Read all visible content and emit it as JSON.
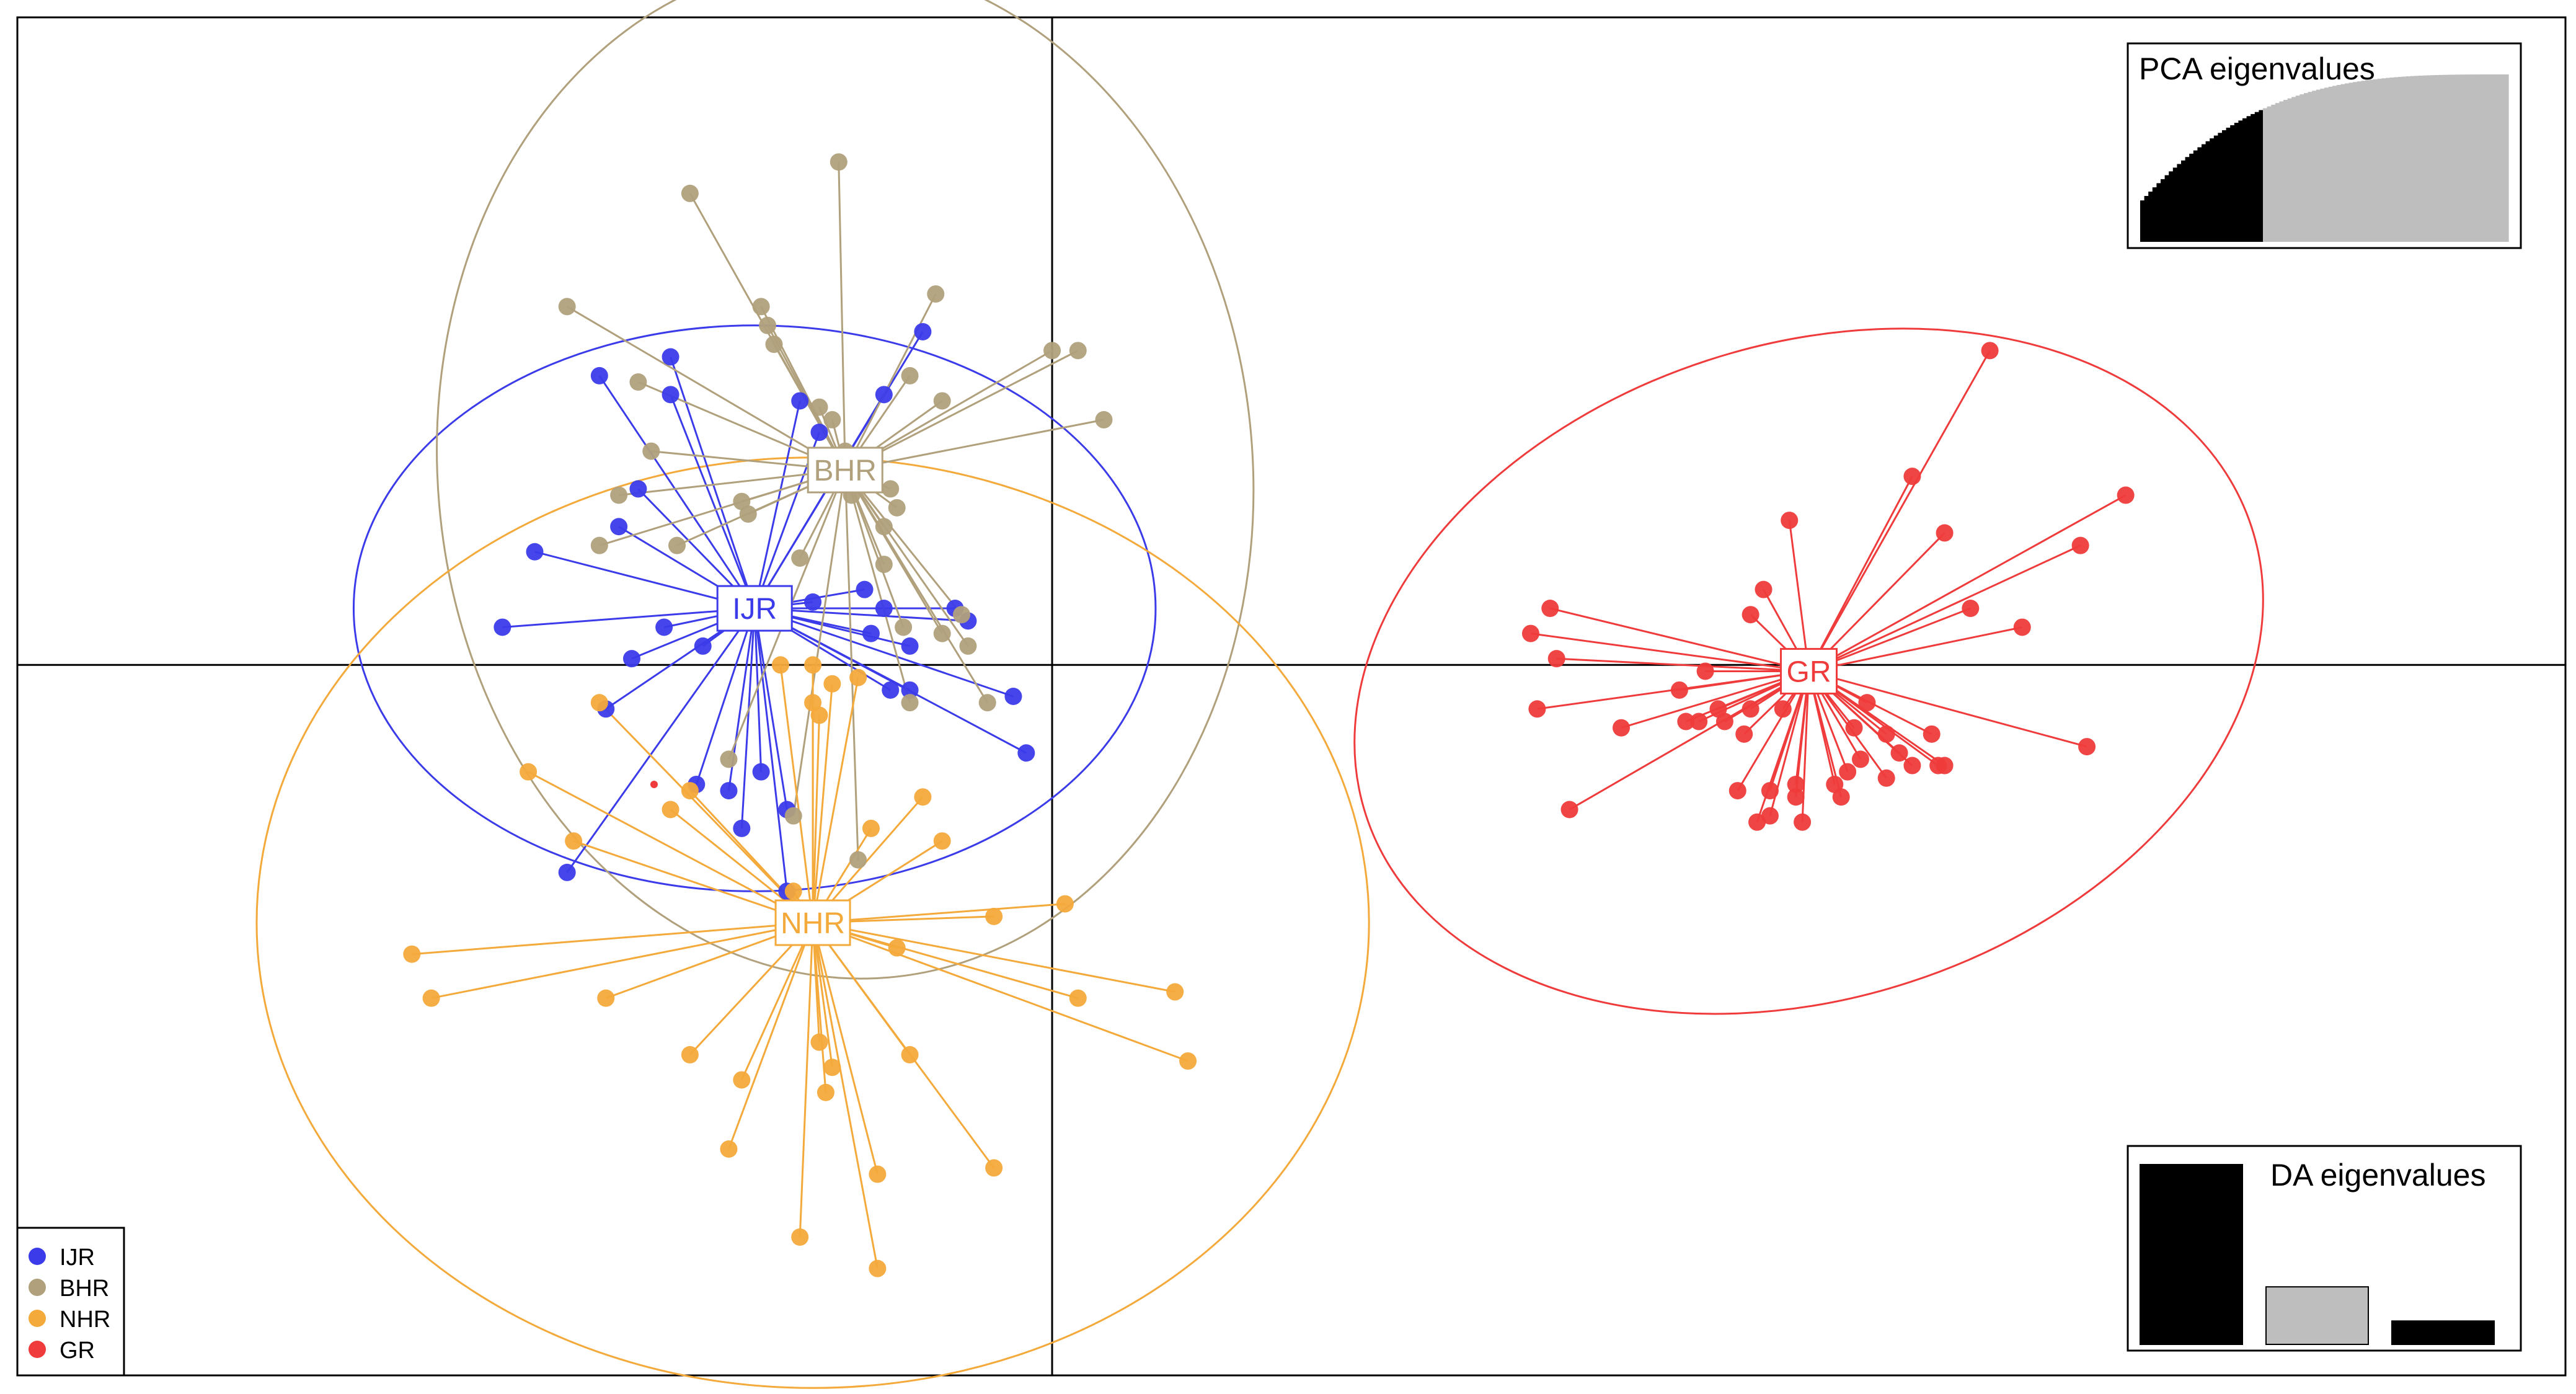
{
  "chart_data": {
    "type": "scatter",
    "title": "",
    "xlabel": "",
    "ylabel": "",
    "xlim": [
      -16.0,
      23.4
    ],
    "ylim": [
      -11.3,
      10.3
    ],
    "grid": false,
    "axes": "cross-at-origin",
    "legend_position": "bottom-left",
    "series": [
      {
        "name": "IJR",
        "color": "#3b3bea",
        "centroid": [
          -4.6,
          0.9
        ],
        "ellipse": {
          "rx": 6.2,
          "ry": 4.5,
          "angle": 0
        },
        "points": [
          [
            -7.0,
            4.6
          ],
          [
            -5.9,
            4.9
          ],
          [
            -5.9,
            4.3
          ],
          [
            -3.9,
            4.2
          ],
          [
            -2.6,
            4.3
          ],
          [
            -2.0,
            5.3
          ],
          [
            -3.6,
            3.7
          ],
          [
            -6.4,
            2.8
          ],
          [
            -6.7,
            2.2
          ],
          [
            -8.0,
            1.8
          ],
          [
            -8.5,
            0.6
          ],
          [
            -6.0,
            0.6
          ],
          [
            -6.5,
            0.1
          ],
          [
            -5.4,
            0.3
          ],
          [
            -3.7,
            1.0
          ],
          [
            -2.9,
            1.2
          ],
          [
            -2.6,
            0.9
          ],
          [
            -1.5,
            0.9
          ],
          [
            -2.8,
            0.5
          ],
          [
            -2.2,
            0.3
          ],
          [
            -1.3,
            0.7
          ],
          [
            -0.6,
            -0.5
          ],
          [
            -6.9,
            -0.7
          ],
          [
            -5.5,
            -1.9
          ],
          [
            -4.5,
            -1.7
          ],
          [
            -5.0,
            -2.0
          ],
          [
            -4.1,
            -2.3
          ],
          [
            -4.8,
            -2.6
          ],
          [
            -2.2,
            -0.4
          ],
          [
            -0.4,
            -1.4
          ],
          [
            -7.5,
            -3.3
          ],
          [
            -4.1,
            -3.6
          ],
          [
            -2.5,
            -0.4
          ]
        ]
      },
      {
        "name": "BHR",
        "color": "#b0a07c",
        "centroid": [
          -3.2,
          3.1
        ],
        "ellipse": {
          "rx": 6.3,
          "ry": 8.1,
          "angle": -5
        },
        "points": [
          [
            -3.3,
            8.0
          ],
          [
            -5.6,
            7.5
          ],
          [
            -7.5,
            5.7
          ],
          [
            -4.5,
            5.7
          ],
          [
            -4.4,
            5.4
          ],
          [
            -4.3,
            5.1
          ],
          [
            -1.8,
            5.9
          ],
          [
            -2.2,
            4.6
          ],
          [
            -1.7,
            4.2
          ],
          [
            -3.6,
            4.1
          ],
          [
            -3.4,
            3.9
          ],
          [
            -6.4,
            4.5
          ],
          [
            0.0,
            5.0
          ],
          [
            0.4,
            5.0
          ],
          [
            0.8,
            3.9
          ],
          [
            -6.2,
            3.4
          ],
          [
            -3.2,
            3.4
          ],
          [
            -3.1,
            2.7
          ],
          [
            -4.8,
            2.6
          ],
          [
            -4.7,
            2.4
          ],
          [
            -2.5,
            2.8
          ],
          [
            -2.4,
            2.5
          ],
          [
            -2.6,
            2.2
          ],
          [
            -6.7,
            2.7
          ],
          [
            -5.8,
            1.9
          ],
          [
            -2.6,
            1.6
          ],
          [
            -3.9,
            1.7
          ],
          [
            -7.0,
            1.9
          ],
          [
            -2.3,
            0.6
          ],
          [
            -1.4,
            0.8
          ],
          [
            -1.7,
            0.5
          ],
          [
            -1.3,
            0.3
          ],
          [
            -2.2,
            -0.6
          ],
          [
            -1.0,
            -0.6
          ],
          [
            -5.0,
            -1.5
          ],
          [
            -4.0,
            -2.4
          ],
          [
            -3.0,
            -3.1
          ]
        ]
      },
      {
        "name": "NHR",
        "color": "#f4a93b",
        "centroid": [
          -3.7,
          -4.1
        ],
        "ellipse": {
          "rx": 8.6,
          "ry": 7.4,
          "angle": 0
        },
        "points": [
          [
            -4.2,
            0.0
          ],
          [
            -3.7,
            0.0
          ],
          [
            -3.4,
            -0.3
          ],
          [
            -3.0,
            -0.2
          ],
          [
            -3.7,
            -0.6
          ],
          [
            -7.0,
            -0.6
          ],
          [
            -3.6,
            -0.8
          ],
          [
            -8.1,
            -1.7
          ],
          [
            -5.6,
            -2.0
          ],
          [
            -7.4,
            -2.8
          ],
          [
            -5.9,
            -2.3
          ],
          [
            -2.0,
            -2.1
          ],
          [
            -1.7,
            -2.8
          ],
          [
            -4.0,
            -3.6
          ],
          [
            -2.8,
            -2.6
          ],
          [
            -9.9,
            -4.6
          ],
          [
            -9.6,
            -5.3
          ],
          [
            -6.9,
            -5.3
          ],
          [
            -3.9,
            -3.9
          ],
          [
            -0.9,
            -4.0
          ],
          [
            0.2,
            -3.8
          ],
          [
            -2.4,
            -4.5
          ],
          [
            -5.6,
            -6.2
          ],
          [
            -4.8,
            -6.6
          ],
          [
            -3.4,
            -6.4
          ],
          [
            -2.2,
            -6.2
          ],
          [
            -3.6,
            -6.0
          ],
          [
            -3.5,
            -6.8
          ],
          [
            -5.0,
            -7.7
          ],
          [
            -3.9,
            -9.1
          ],
          [
            -2.7,
            -8.1
          ],
          [
            0.4,
            -5.3
          ],
          [
            1.9,
            -5.2
          ],
          [
            2.1,
            -6.3
          ],
          [
            -0.9,
            -8.0
          ],
          [
            -2.7,
            -9.6
          ]
        ]
      },
      {
        "name": "GR",
        "color": "#ef3b3b",
        "centroid": [
          11.7,
          -0.1
        ],
        "ellipse": {
          "rx": 7.2,
          "ry": 5.2,
          "angle": -18
        },
        "points": [
          [
            14.5,
            5.0
          ],
          [
            13.3,
            3.0
          ],
          [
            11.4,
            2.3
          ],
          [
            13.8,
            2.1
          ],
          [
            16.6,
            2.7
          ],
          [
            15.9,
            1.9
          ],
          [
            11.0,
            1.2
          ],
          [
            10.8,
            0.8
          ],
          [
            14.2,
            0.9
          ],
          [
            7.7,
            0.9
          ],
          [
            7.4,
            0.5
          ],
          [
            7.8,
            0.1
          ],
          [
            15.0,
            0.6
          ],
          [
            16.0,
            -1.3
          ],
          [
            9.7,
            -0.4
          ],
          [
            10.1,
            -0.1
          ],
          [
            8.8,
            -1.0
          ],
          [
            10.8,
            -0.7
          ],
          [
            12.6,
            -0.6
          ],
          [
            10.3,
            -0.7
          ],
          [
            10.0,
            -0.9
          ],
          [
            11.3,
            -0.7
          ],
          [
            12.4,
            -1.0
          ],
          [
            12.9,
            -1.1
          ],
          [
            10.7,
            -1.1
          ],
          [
            10.4,
            -0.9
          ],
          [
            9.8,
            -0.9
          ],
          [
            7.5,
            -0.7
          ],
          [
            12.3,
            -1.7
          ],
          [
            13.3,
            -1.6
          ],
          [
            13.7,
            -1.6
          ],
          [
            11.5,
            -1.9
          ],
          [
            12.1,
            -1.9
          ],
          [
            11.1,
            -2.0
          ],
          [
            11.6,
            -2.5
          ],
          [
            13.8,
            -1.6
          ],
          [
            10.6,
            -2.0
          ],
          [
            12.9,
            -1.8
          ],
          [
            12.5,
            -1.5
          ],
          [
            13.1,
            -1.4
          ],
          [
            13.6,
            -1.1
          ],
          [
            8.0,
            -2.3
          ],
          [
            12.2,
            -2.1
          ],
          [
            11.5,
            -2.1
          ],
          [
            10.9,
            -2.5
          ],
          [
            11.1,
            -2.4
          ]
        ]
      }
    ],
    "insets": [
      {
        "title": "PCA eigenvalues",
        "position": "top-right",
        "type": "bar",
        "description_shape": "cumulative-curve",
        "retained": 30,
        "total": 90,
        "highlight_color": "#000000",
        "rest_color": "#bebebe"
      },
      {
        "title": "DA eigenvalues",
        "position": "bottom-right",
        "type": "bar",
        "values": [
          100,
          32,
          13
        ],
        "colors": [
          "#000000",
          "#bebebe",
          "#000000"
        ]
      }
    ],
    "legend": {
      "position": "bottom-left",
      "entries": [
        {
          "label": "IJR",
          "color": "#3b3bea"
        },
        {
          "label": "BHR",
          "color": "#b0a07c"
        },
        {
          "label": "NHR",
          "color": "#f4a93b"
        },
        {
          "label": "GR",
          "color": "#ef3b3b"
        }
      ]
    }
  }
}
